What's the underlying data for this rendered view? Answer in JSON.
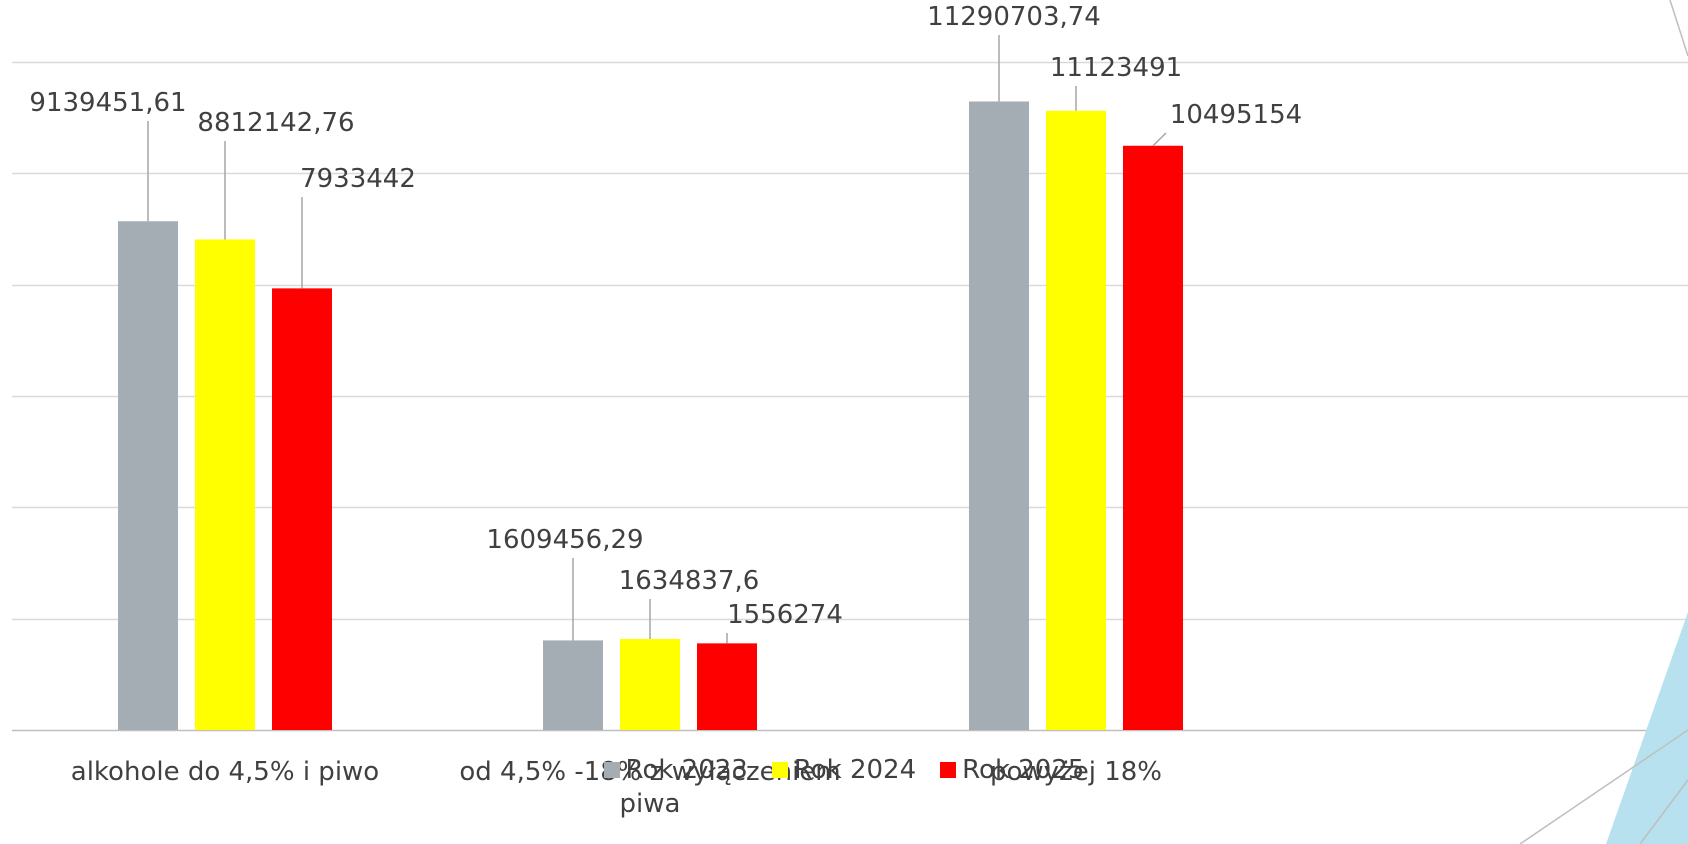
{
  "chart_data": {
    "type": "bar",
    "categories": [
      "alkohole do 4,5% i piwo",
      "od 4,5% -18% z wyłączeniem piwa",
      "powyżej 18%"
    ],
    "series": [
      {
        "name": "Rok 2023",
        "color": "#A5ADB4",
        "values": [
          9139451.61,
          1609456.29,
          11290703.74
        ],
        "labels": [
          "9139451,61",
          "1609456,29",
          "11290703,74"
        ]
      },
      {
        "name": "Rok 2024",
        "color": "#FFFF00",
        "values": [
          8812142.76,
          1634837.6,
          11123491
        ],
        "labels": [
          "8812142,76",
          "1634837,6",
          "11123491"
        ]
      },
      {
        "name": "Rok 2025",
        "color": "#FF0000",
        "values": [
          7933442,
          1556274,
          10495154
        ],
        "labels": [
          "7933442",
          "1556274",
          "10495154"
        ]
      }
    ],
    "ylim": [
      0,
      12000000
    ],
    "grid": true,
    "legend": "bottom"
  }
}
